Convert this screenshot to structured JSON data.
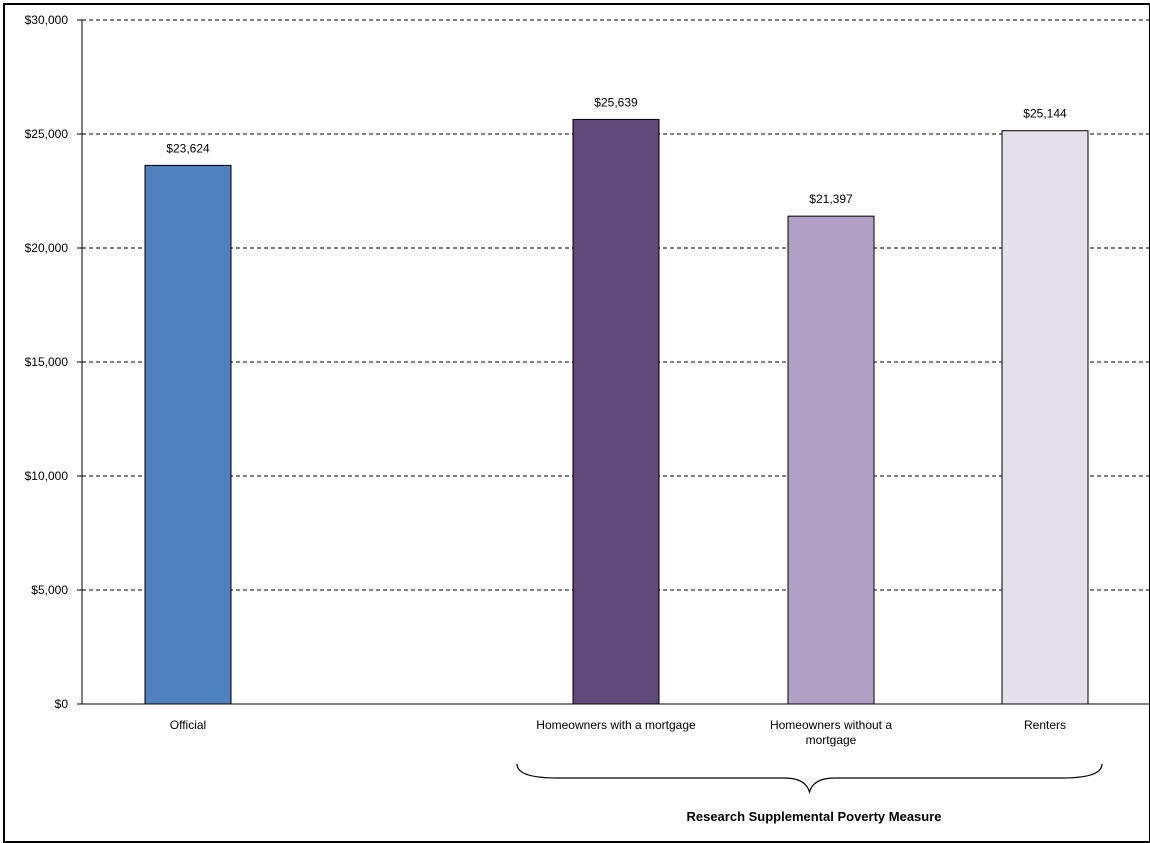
{
  "chart_data": {
    "type": "bar",
    "categories": [
      "Official",
      "Homeowners with a mortgage",
      "Homeowners without a mortgage",
      "Renters"
    ],
    "category_lines": [
      [
        "Official"
      ],
      [
        "Homeowners with a mortgage"
      ],
      [
        "Homeowners without a",
        "mortgage"
      ],
      [
        "Renters"
      ]
    ],
    "values": [
      23624,
      25639,
      21397,
      25144
    ],
    "value_labels": [
      "$23,624",
      "$25,639",
      "$21,397",
      "$25,144"
    ],
    "colors": [
      "#4f81bd",
      "#604a7b",
      "#b2a1c7",
      "#e5dfec"
    ],
    "ylim": [
      0,
      30000
    ],
    "yticks": [
      0,
      5000,
      10000,
      15000,
      20000,
      25000,
      30000
    ],
    "ytick_labels": [
      "$0",
      "$5,000",
      "$10,000",
      "$15,000",
      "$20,000",
      "$25,000",
      "$30,000"
    ],
    "grid": true,
    "title": "",
    "xlabel": "",
    "ylabel": "",
    "group_annotation": {
      "label": "Research Supplemental Poverty Measure",
      "categories": [
        "Homeowners with a mortgage",
        "Homeowners without a mortgage",
        "Renters"
      ]
    }
  }
}
